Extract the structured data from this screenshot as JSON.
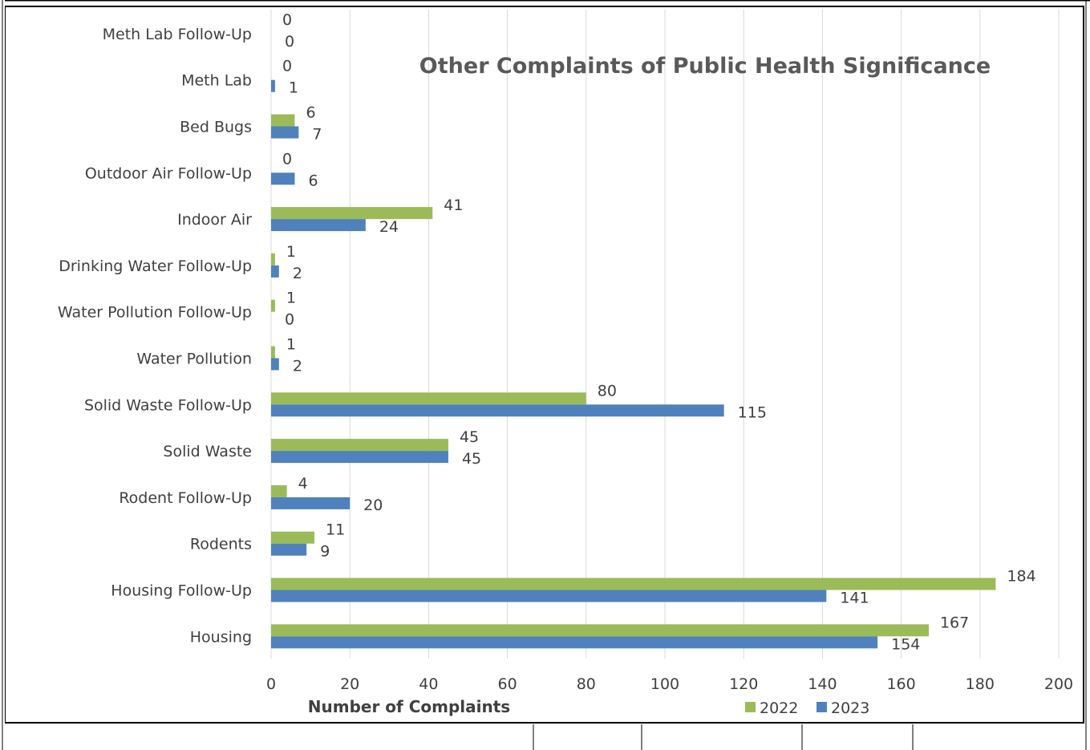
{
  "chart_data": {
    "type": "bar",
    "orientation": "horizontal",
    "title": "Other Complaints of Public Health Significance",
    "xlabel": "Number of Complaints",
    "ylabel": "",
    "xlim": [
      0,
      200
    ],
    "x_ticks": [
      "0",
      "20",
      "40",
      "60",
      "80",
      "100",
      "120",
      "140",
      "160",
      "180",
      "200"
    ],
    "grid": "vertical",
    "legend_position": "bottom-right",
    "categories": [
      "Meth Lab Follow-Up",
      "Meth Lab",
      "Bed Bugs",
      "Outdoor Air Follow-Up",
      "Indoor Air",
      "Drinking Water Follow-Up",
      "Water Pollution Follow-Up",
      "Water Pollution",
      "Solid Waste Follow-Up",
      "Solid Waste",
      "Rodent Follow-Up",
      "Rodents",
      "Housing Follow-Up",
      "Housing"
    ],
    "series": [
      {
        "name": "2022",
        "color": "#9bbb59",
        "values": [
          0,
          0,
          6,
          0,
          41,
          1,
          1,
          1,
          80,
          45,
          4,
          11,
          184,
          167
        ]
      },
      {
        "name": "2023",
        "color": "#4f81bd",
        "values": [
          0,
          1,
          7,
          6,
          24,
          2,
          0,
          2,
          115,
          45,
          20,
          9,
          141,
          154
        ]
      }
    ]
  }
}
